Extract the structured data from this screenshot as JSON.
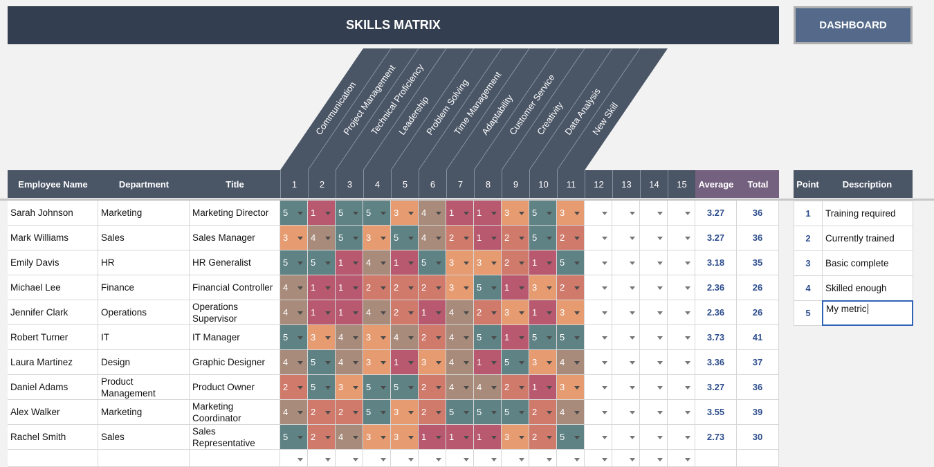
{
  "title": "SKILLS MATRIX",
  "dashboard_button": "DASHBOARD",
  "skills": [
    "Communication",
    "Project Management",
    "Technical Proficiency",
    "Leadership",
    "Problem Solving",
    "Time Management",
    "Adaptability",
    "Customer Service",
    "Creativity",
    "Data Analysis",
    "New Skill"
  ],
  "columns": {
    "employee_name": "Employee Name",
    "department": "Department",
    "title": "Title",
    "numbers": [
      "1",
      "2",
      "3",
      "4",
      "5",
      "6",
      "7",
      "8",
      "9",
      "10",
      "11",
      "12",
      "13",
      "14",
      "15"
    ],
    "average": "Average",
    "total": "Total"
  },
  "score_colors": {
    "1": "#b9596f",
    "2": "#d07a6c",
    "3": "#e69b71",
    "4": "#a88b7b",
    "5": "#5f8285"
  },
  "employees": [
    {
      "name": "Sarah Johnson",
      "department": "Marketing",
      "title": "Marketing Director",
      "scores": [
        5,
        1,
        5,
        5,
        3,
        4,
        1,
        1,
        3,
        5,
        3
      ],
      "average": "3.27",
      "total": "36"
    },
    {
      "name": "Mark Williams",
      "department": "Sales",
      "title": "Sales Manager",
      "scores": [
        3,
        4,
        5,
        3,
        5,
        4,
        2,
        1,
        2,
        5,
        2
      ],
      "average": "3.27",
      "total": "36"
    },
    {
      "name": "Emily Davis",
      "department": "HR",
      "title": "HR Generalist",
      "scores": [
        5,
        5,
        1,
        4,
        1,
        5,
        3,
        3,
        2,
        1,
        5
      ],
      "average": "3.18",
      "total": "35"
    },
    {
      "name": "Michael Lee",
      "department": "Finance",
      "title": "Financial Controller",
      "scores": [
        4,
        1,
        1,
        2,
        2,
        2,
        3,
        5,
        1,
        3,
        2
      ],
      "average": "2.36",
      "total": "26"
    },
    {
      "name": "Jennifer Clark",
      "department": "Operations",
      "title": "Operations Supervisor",
      "scores": [
        4,
        1,
        1,
        4,
        2,
        1,
        4,
        2,
        3,
        1,
        3
      ],
      "average": "2.36",
      "total": "26"
    },
    {
      "name": "Robert Turner",
      "department": "IT",
      "title": "IT Manager",
      "scores": [
        5,
        3,
        4,
        3,
        4,
        2,
        4,
        5,
        1,
        5,
        5
      ],
      "average": "3.73",
      "total": "41"
    },
    {
      "name": "Laura Martinez",
      "department": "Design",
      "title": "Graphic Designer",
      "scores": [
        4,
        5,
        4,
        3,
        1,
        3,
        4,
        1,
        5,
        3,
        4
      ],
      "average": "3.36",
      "total": "37"
    },
    {
      "name": "Daniel Adams",
      "department": "Product Management",
      "title": "Product Owner",
      "scores": [
        2,
        5,
        3,
        5,
        5,
        2,
        4,
        4,
        2,
        1,
        3
      ],
      "average": "3.27",
      "total": "36"
    },
    {
      "name": "Alex Walker",
      "department": "Marketing",
      "title": "Marketing Coordinator",
      "scores": [
        4,
        2,
        2,
        5,
        3,
        2,
        5,
        5,
        5,
        2,
        4
      ],
      "average": "3.55",
      "total": "39"
    },
    {
      "name": "Rachel Smith",
      "department": "Sales",
      "title": "Sales Representative",
      "scores": [
        5,
        2,
        4,
        3,
        3,
        1,
        1,
        1,
        3,
        2,
        5
      ],
      "average": "2.73",
      "total": "30"
    }
  ],
  "legend": {
    "point_header": "Point",
    "description_header": "Description",
    "items": [
      {
        "point": "1",
        "description": "Training required"
      },
      {
        "point": "2",
        "description": "Currently trained"
      },
      {
        "point": "3",
        "description": "Basic complete"
      },
      {
        "point": "4",
        "description": "Skilled enough"
      },
      {
        "point": "5",
        "description": "My metric"
      }
    ]
  }
}
